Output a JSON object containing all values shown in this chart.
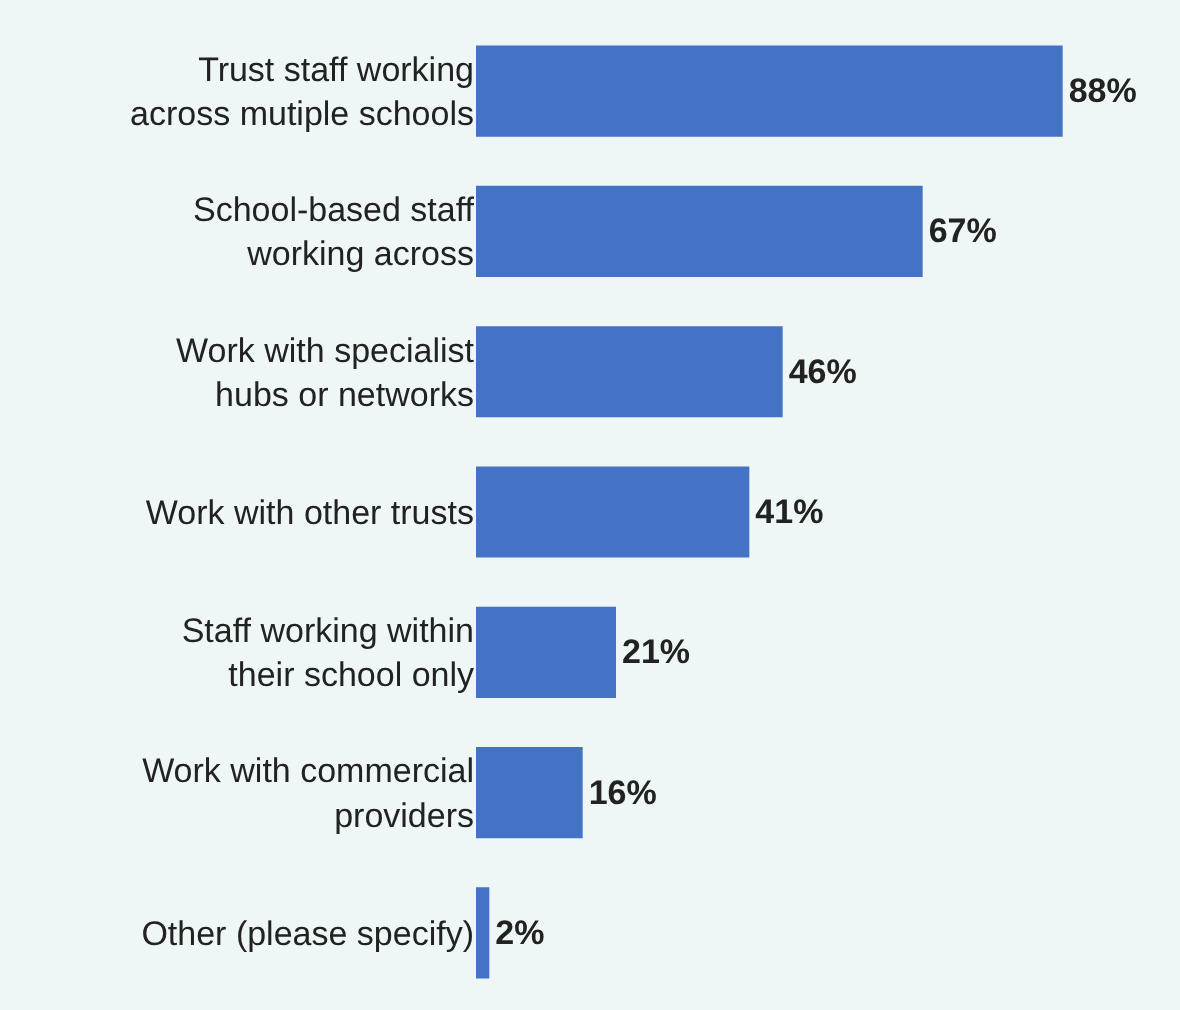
{
  "chart_data": {
    "type": "bar",
    "orientation": "horizontal",
    "categories": [
      "Trust staff working\nacross mutiple schools",
      "School-based staff\nworking across",
      "Work with specialist\nhubs or networks",
      "Work with other trusts",
      "Staff working within\ntheir school only",
      "Work with commercial\nproviders",
      "Other (please specify)"
    ],
    "values": [
      88,
      67,
      46,
      41,
      21,
      16,
      2
    ],
    "value_labels": [
      "88%",
      "67%",
      "46%",
      "41%",
      "21%",
      "16%",
      "2%"
    ],
    "color": "#4472c4"
  }
}
